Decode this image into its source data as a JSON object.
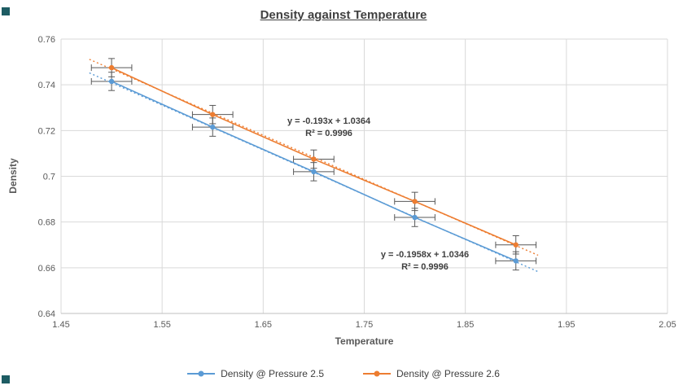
{
  "corner_marker_color": "#1d5c63",
  "chart_data": {
    "type": "line",
    "title": "Density against Temperature",
    "xlabel": "Temperature",
    "ylabel": "Density",
    "xlim": [
      1.45,
      2.05
    ],
    "ylim": [
      0.64,
      0.76
    ],
    "x_ticks": [
      "1.45",
      "1.55",
      "1.65",
      "1.75",
      "1.85",
      "1.95",
      "2.05"
    ],
    "y_ticks": [
      "0.64",
      "0.66",
      "0.68",
      "0.7",
      "0.72",
      "0.74",
      "0.76"
    ],
    "grid": true,
    "grid_color": "#d9d9d9",
    "axis_line_color": "#bfbfbf",
    "tick_color": "#595959",
    "error_bar_color": "#595959",
    "legend_position": "bottom",
    "x": [
      1.5,
      1.6,
      1.7,
      1.8,
      1.9
    ],
    "series": [
      {
        "name": "Density @ Pressure 2.5",
        "color": "#5b9bd5",
        "values": [
          0.7415,
          0.7215,
          0.702,
          0.682,
          0.663
        ],
        "x_error": 0.02,
        "y_error": 0.004,
        "trendline": {
          "slope": -0.1958,
          "intercept": 1.0346
        }
      },
      {
        "name": "Density @ Pressure 2.6",
        "color": "#ed7d31",
        "values": [
          0.7475,
          0.727,
          0.7075,
          0.689,
          0.67
        ],
        "x_error": 0.02,
        "y_error": 0.004,
        "trendline": {
          "slope": -0.193,
          "intercept": 1.0364
        }
      }
    ],
    "annotations": [
      {
        "lines": [
          "y = -0.193x + 1.0364",
          "R² = 0.9996"
        ],
        "x": 1.715,
        "y": 0.723,
        "color": "#404040"
      },
      {
        "lines": [
          "y = -0.1958x + 1.0346",
          "R² = 0.9996"
        ],
        "x": 1.81,
        "y": 0.6645,
        "color": "#404040"
      }
    ]
  }
}
